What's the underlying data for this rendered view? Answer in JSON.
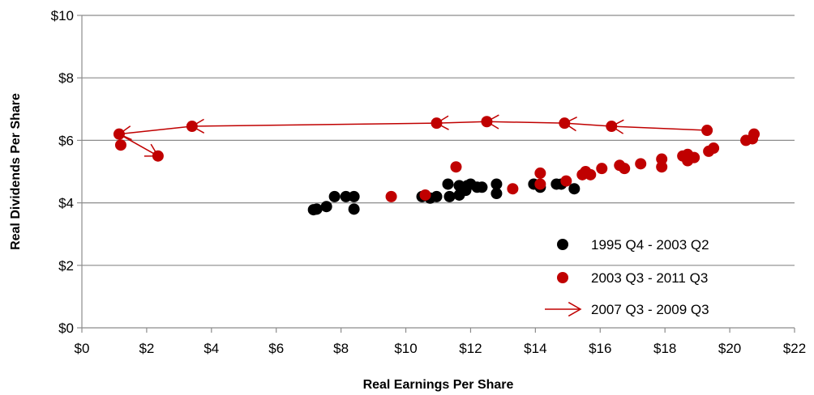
{
  "chart_data": {
    "type": "scatter",
    "xlabel": "Real Earnings Per Share",
    "ylabel": "Real Dividends Per Share",
    "xlim": [
      0,
      22
    ],
    "ylim": [
      0,
      10
    ],
    "x_ticks": [
      0,
      2,
      4,
      6,
      8,
      10,
      12,
      14,
      16,
      18,
      20,
      22
    ],
    "y_ticks": [
      0,
      2,
      4,
      6,
      8,
      10
    ],
    "x_tick_labels": [
      "$0",
      "$2",
      "$4",
      "$6",
      "$8",
      "$10",
      "$12",
      "$14",
      "$16",
      "$18",
      "$20",
      "$22"
    ],
    "y_tick_labels": [
      "$0",
      "$2",
      "$4",
      "$6",
      "$8",
      "$10"
    ],
    "grid": "horizontal",
    "legend_position": "bottom-right",
    "series": [
      {
        "name": "1995 Q4 - 2003 Q2",
        "kind": "points",
        "color": "#000000",
        "points": [
          [
            7.15,
            3.78
          ],
          [
            7.25,
            3.8
          ],
          [
            7.55,
            3.88
          ],
          [
            7.8,
            4.2
          ],
          [
            8.15,
            4.2
          ],
          [
            8.4,
            4.2
          ],
          [
            8.4,
            3.8
          ],
          [
            10.5,
            4.2
          ],
          [
            10.75,
            4.15
          ],
          [
            10.95,
            4.2
          ],
          [
            11.3,
            4.6
          ],
          [
            11.35,
            4.2
          ],
          [
            11.65,
            4.55
          ],
          [
            11.65,
            4.25
          ],
          [
            11.85,
            4.4
          ],
          [
            11.9,
            4.55
          ],
          [
            12.0,
            4.6
          ],
          [
            12.2,
            4.5
          ],
          [
            12.35,
            4.5
          ],
          [
            12.8,
            4.6
          ],
          [
            12.8,
            4.3
          ],
          [
            13.95,
            4.6
          ],
          [
            14.15,
            4.5
          ],
          [
            14.65,
            4.6
          ],
          [
            14.8,
            4.6
          ],
          [
            15.2,
            4.45
          ]
        ]
      },
      {
        "name": "2003 Q3 - 2011 Q3",
        "kind": "points",
        "color": "#c00000",
        "points": [
          [
            9.55,
            4.2
          ],
          [
            10.6,
            4.25
          ],
          [
            11.55,
            5.15
          ],
          [
            13.3,
            4.45
          ],
          [
            14.15,
            4.95
          ],
          [
            14.15,
            4.6
          ],
          [
            14.95,
            4.7
          ],
          [
            15.45,
            4.9
          ],
          [
            15.55,
            5.0
          ],
          [
            15.7,
            4.9
          ],
          [
            16.05,
            5.1
          ],
          [
            16.6,
            5.2
          ],
          [
            16.75,
            5.1
          ],
          [
            17.25,
            5.25
          ],
          [
            17.9,
            5.15
          ],
          [
            17.9,
            5.4
          ],
          [
            18.55,
            5.5
          ],
          [
            18.7,
            5.55
          ],
          [
            18.7,
            5.35
          ],
          [
            18.9,
            5.45
          ],
          [
            19.35,
            5.65
          ],
          [
            19.5,
            5.75
          ],
          [
            20.5,
            6.0
          ],
          [
            20.7,
            6.05
          ],
          [
            20.75,
            6.2
          ],
          [
            19.3,
            6.32
          ],
          [
            16.35,
            6.45
          ],
          [
            14.9,
            6.55
          ],
          [
            12.5,
            6.6
          ],
          [
            10.95,
            6.55
          ],
          [
            3.4,
            6.45
          ],
          [
            1.15,
            6.2
          ],
          [
            1.2,
            5.85
          ],
          [
            2.35,
            5.5
          ]
        ]
      },
      {
        "name": "2007 Q3 - 2009 Q3",
        "kind": "arrows",
        "color": "#c00000",
        "points": [
          [
            19.3,
            6.32
          ],
          [
            16.35,
            6.45
          ],
          [
            14.9,
            6.55
          ],
          [
            12.5,
            6.6
          ],
          [
            10.95,
            6.55
          ],
          [
            3.4,
            6.45
          ],
          [
            1.15,
            6.2
          ],
          [
            2.35,
            5.5
          ]
        ]
      }
    ]
  }
}
